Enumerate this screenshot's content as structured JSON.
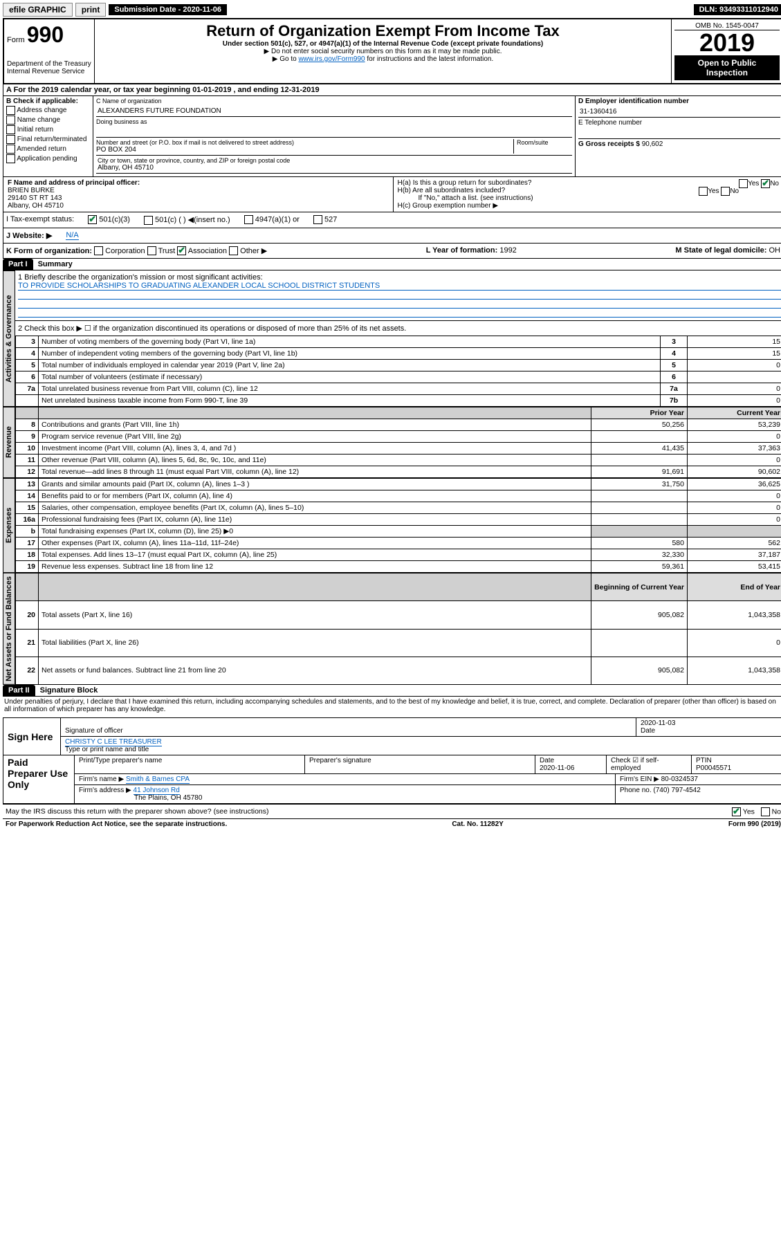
{
  "top": {
    "efile": "efile GRAPHIC",
    "print": "print",
    "subm_label": "Submission Date - 2020-11-06",
    "dln": "DLN: 93493311012940"
  },
  "header": {
    "form_word": "Form",
    "form_num": "990",
    "dept": "Department of the Treasury\nInternal Revenue Service",
    "title": "Return of Organization Exempt From Income Tax",
    "sub1": "Under section 501(c), 527, or 4947(a)(1) of the Internal Revenue Code (except private foundations)",
    "sub2": "▶ Do not enter social security numbers on this form as it may be made public.",
    "sub3a": "▶ Go to ",
    "sub3link": "www.irs.gov/Form990",
    "sub3b": " for instructions and the latest information.",
    "omb": "OMB No. 1545-0047",
    "year": "2019",
    "open": "Open to Public Inspection"
  },
  "rowA": "A  For the 2019 calendar year, or tax year beginning 01-01-2019    , and ending 12-31-2019",
  "B": {
    "label": "B Check if applicable:",
    "items": [
      "Address change",
      "Name change",
      "Initial return",
      "Final return/terminated",
      "Amended return",
      "Application pending"
    ]
  },
  "C": {
    "label": "C Name of organization",
    "name": "ALEXANDERS FUTURE FOUNDATION",
    "dba_label": "Doing business as",
    "addr_label": "Number and street (or P.O. box if mail is not delivered to street address)",
    "room_label": "Room/suite",
    "addr": "PO BOX 204",
    "city_label": "City or town, state or province, country, and ZIP or foreign postal code",
    "city": "Albany, OH  45710"
  },
  "D": {
    "label": "D Employer identification number",
    "val": "31-1360416"
  },
  "E": {
    "label": "E Telephone number",
    "val": ""
  },
  "G": {
    "label": "G Gross receipts $",
    "val": "90,602"
  },
  "F": {
    "label": "F  Name and address of principal officer:",
    "name": "BRIEN BURKE",
    "addr1": "29140 ST RT 143",
    "addr2": "Albany, OH  45710"
  },
  "H": {
    "a": "H(a)  Is this a group return for subordinates?",
    "b": "H(b)  Are all subordinates included?",
    "bnote": "If \"No,\" attach a list. (see instructions)",
    "c": "H(c)  Group exemption number ▶"
  },
  "I": {
    "label": "I  Tax-exempt status:",
    "opts": [
      "501(c)(3)",
      "501(c) (  ) ◀(insert no.)",
      "4947(a)(1) or",
      "527"
    ]
  },
  "J": {
    "label": "J  Website: ▶",
    "val": "N/A"
  },
  "K": {
    "label": "K Form of organization:",
    "opts": [
      "Corporation",
      "Trust",
      "Association",
      "Other ▶"
    ]
  },
  "L": {
    "label": "L Year of formation:",
    "val": "1992"
  },
  "M": {
    "label": "M State of legal domicile:",
    "val": "OH"
  },
  "part1": {
    "header": "Part I",
    "title": "Summary",
    "line1_label": "1  Briefly describe the organization's mission or most significant activities:",
    "mission": "TO PROVIDE SCHOLARSHIPS TO GRADUATING ALEXANDER LOCAL SCHOOL DISTRICT STUDENTS",
    "line2": "2  Check this box ▶ ☐  if the organization discontinued its operations or disposed of more than 25% of its net assets.",
    "sideA": "Activities & Governance",
    "sideR": "Revenue",
    "sideE": "Expenses",
    "sideN": "Net Assets or Fund Balances",
    "rows_top": [
      {
        "n": "3",
        "d": "Number of voting members of the governing body (Part VI, line 1a)",
        "box": "3",
        "v": "15"
      },
      {
        "n": "4",
        "d": "Number of independent voting members of the governing body (Part VI, line 1b)",
        "box": "4",
        "v": "15"
      },
      {
        "n": "5",
        "d": "Total number of individuals employed in calendar year 2019 (Part V, line 2a)",
        "box": "5",
        "v": "0"
      },
      {
        "n": "6",
        "d": "Total number of volunteers (estimate if necessary)",
        "box": "6",
        "v": ""
      },
      {
        "n": "7a",
        "d": "Total unrelated business revenue from Part VIII, column (C), line 12",
        "box": "7a",
        "v": "0"
      },
      {
        "n": "",
        "d": "Net unrelated business taxable income from Form 990-T, line 39",
        "box": "7b",
        "v": "0"
      }
    ],
    "hdr_prior": "Prior Year",
    "hdr_curr": "Current Year",
    "rows_rev": [
      {
        "n": "8",
        "d": "Contributions and grants (Part VIII, line 1h)",
        "p": "50,256",
        "c": "53,239"
      },
      {
        "n": "9",
        "d": "Program service revenue (Part VIII, line 2g)",
        "p": "",
        "c": "0"
      },
      {
        "n": "10",
        "d": "Investment income (Part VIII, column (A), lines 3, 4, and 7d )",
        "p": "41,435",
        "c": "37,363"
      },
      {
        "n": "11",
        "d": "Other revenue (Part VIII, column (A), lines 5, 6d, 8c, 9c, 10c, and 11e)",
        "p": "",
        "c": "0"
      },
      {
        "n": "12",
        "d": "Total revenue—add lines 8 through 11 (must equal Part VIII, column (A), line 12)",
        "p": "91,691",
        "c": "90,602"
      }
    ],
    "rows_exp": [
      {
        "n": "13",
        "d": "Grants and similar amounts paid (Part IX, column (A), lines 1–3 )",
        "p": "31,750",
        "c": "36,625"
      },
      {
        "n": "14",
        "d": "Benefits paid to or for members (Part IX, column (A), line 4)",
        "p": "",
        "c": "0"
      },
      {
        "n": "15",
        "d": "Salaries, other compensation, employee benefits (Part IX, column (A), lines 5–10)",
        "p": "",
        "c": "0"
      },
      {
        "n": "16a",
        "d": "Professional fundraising fees (Part IX, column (A), line 11e)",
        "p": "",
        "c": "0"
      },
      {
        "n": "b",
        "d": "Total fundraising expenses (Part IX, column (D), line 25) ▶0",
        "p": "shade",
        "c": "shade"
      },
      {
        "n": "17",
        "d": "Other expenses (Part IX, column (A), lines 11a–11d, 11f–24e)",
        "p": "580",
        "c": "562"
      },
      {
        "n": "18",
        "d": "Total expenses. Add lines 13–17 (must equal Part IX, column (A), line 25)",
        "p": "32,330",
        "c": "37,187"
      },
      {
        "n": "19",
        "d": "Revenue less expenses. Subtract line 18 from line 12",
        "p": "59,361",
        "c": "53,415"
      }
    ],
    "hdr_beg": "Beginning of Current Year",
    "hdr_end": "End of Year",
    "rows_net": [
      {
        "n": "20",
        "d": "Total assets (Part X, line 16)",
        "p": "905,082",
        "c": "1,043,358"
      },
      {
        "n": "21",
        "d": "Total liabilities (Part X, line 26)",
        "p": "",
        "c": "0"
      },
      {
        "n": "22",
        "d": "Net assets or fund balances. Subtract line 21 from line 20",
        "p": "905,082",
        "c": "1,043,358"
      }
    ]
  },
  "part2": {
    "header": "Part II",
    "title": "Signature Block",
    "decl": "Under penalties of perjury, I declare that I have examined this return, including accompanying schedules and statements, and to the best of my knowledge and belief, it is true, correct, and complete. Declaration of preparer (other than officer) is based on all information of which preparer has any knowledge.",
    "sign_here": "Sign Here",
    "sig_officer": "Signature of officer",
    "sig_date": "2020-11-03",
    "date_label": "Date",
    "officer_name": "CHRISTY C LEE TREASURER",
    "officer_sub": "Type or print name and title",
    "paid": "Paid Preparer Use Only",
    "prep_name_label": "Print/Type preparer's name",
    "prep_sig_label": "Preparer's signature",
    "prep_date_label": "Date",
    "prep_date": "2020-11-06",
    "self_emp": "Check ☑ if self-employed",
    "ptin_label": "PTIN",
    "ptin": "P00045571",
    "firm_name_label": "Firm's name    ▶",
    "firm_name": "Smith & Barnes CPA",
    "firm_ein_label": "Firm's EIN ▶",
    "firm_ein": "80-0324537",
    "firm_addr_label": "Firm's address ▶",
    "firm_addr1": "41 Johnson Rd",
    "firm_addr2": "The Plains, OH  45780",
    "phone_label": "Phone no.",
    "phone": "(740) 797-4542",
    "discuss": "May the IRS discuss this return with the preparer shown above? (see instructions)"
  },
  "footer": {
    "pra": "For Paperwork Reduction Act Notice, see the separate instructions.",
    "cat": "Cat. No. 11282Y",
    "form": "Form 990 (2019)"
  }
}
